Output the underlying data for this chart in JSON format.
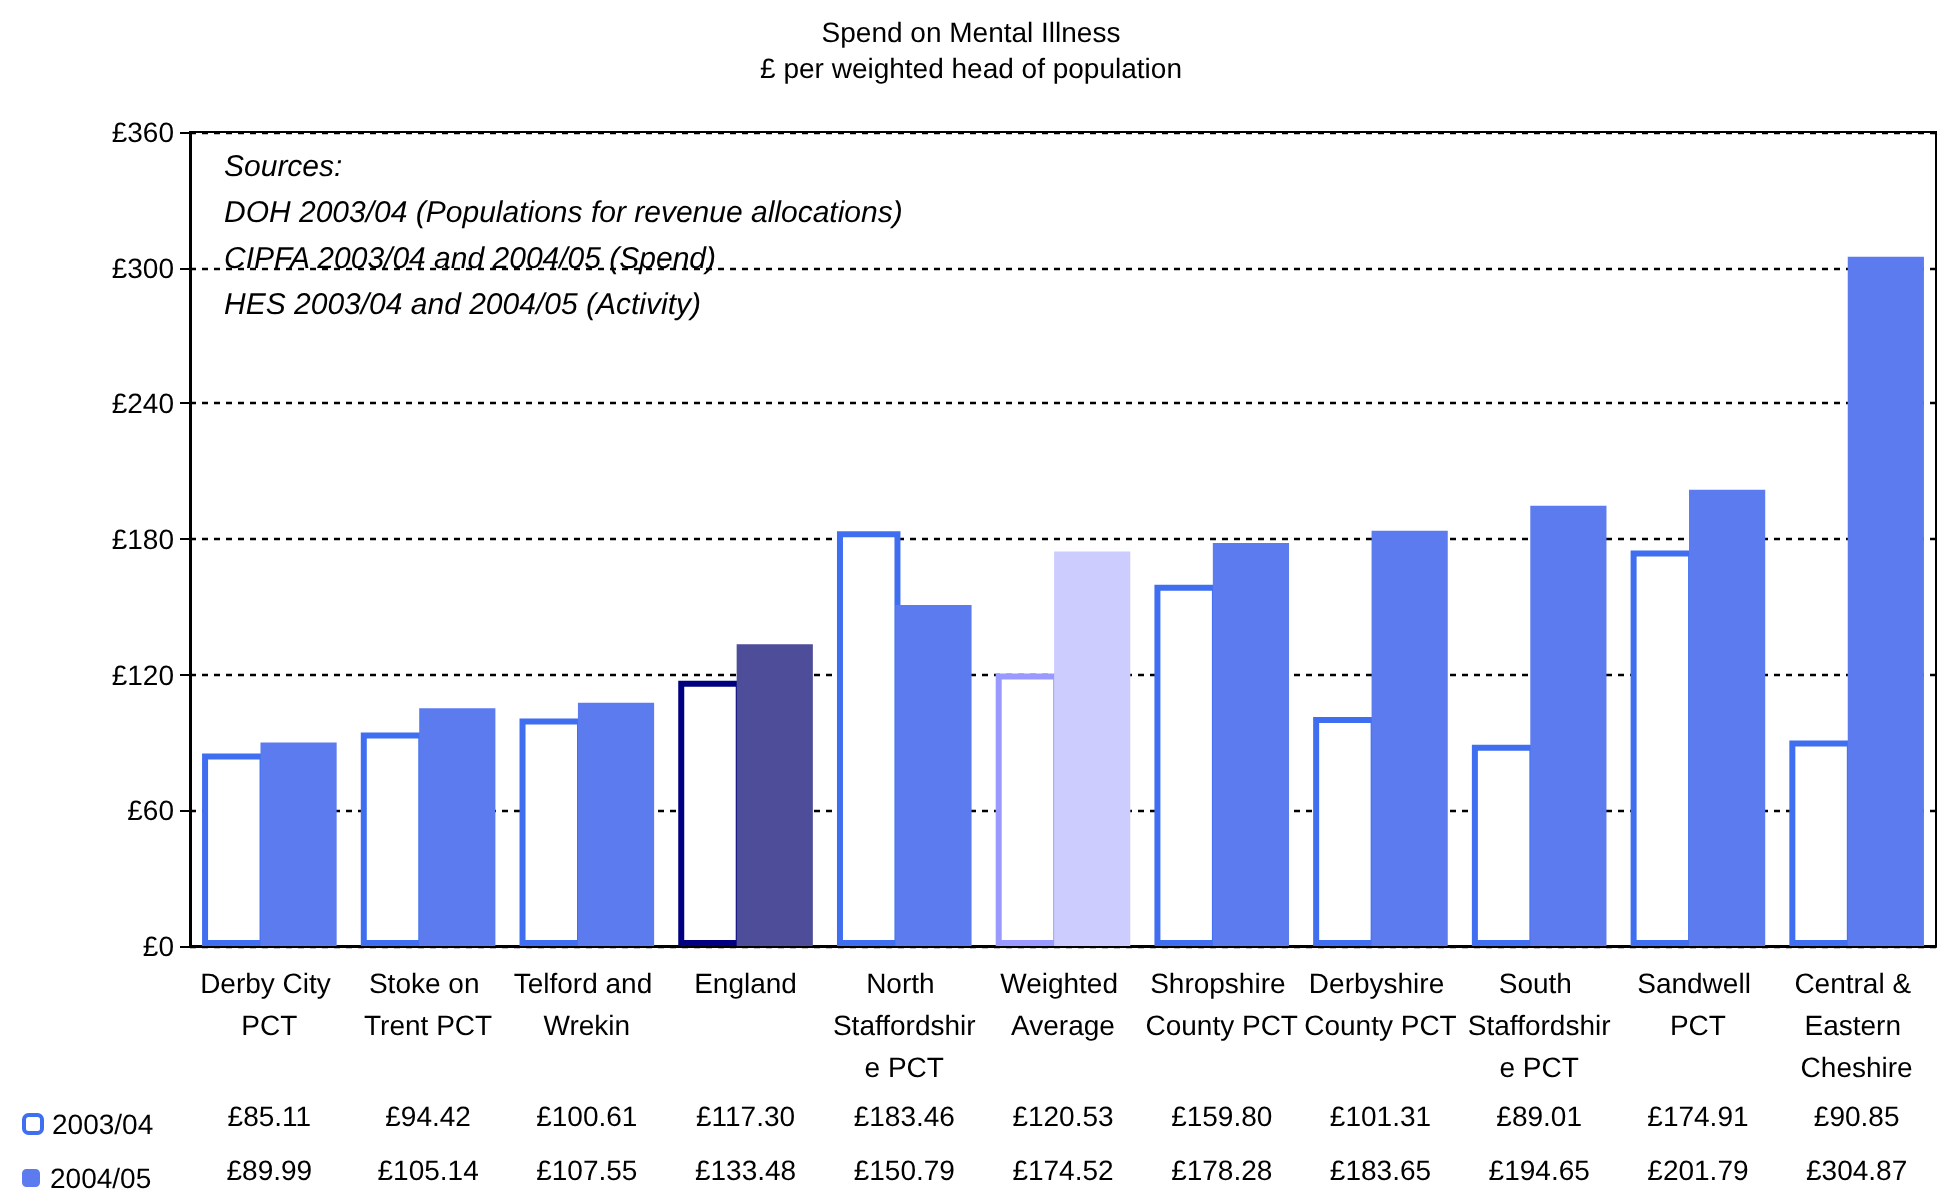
{
  "chart_data": {
    "type": "bar",
    "title": "Spend on Mental Illness",
    "subtitle": "£ per weighted head of population",
    "annotations": [
      "Sources:",
      "DOH 2003/04 (Populations for revenue allocations)",
      "CIPFA 2003/04 and 2004/05 (Spend)",
      "HES 2003/04 and 2004/05 (Activity)"
    ],
    "categories": [
      "Derby City PCT",
      "Stoke on Trent PCT",
      "Telford and Wrekin",
      "England",
      "North Staffordshire PCT",
      "Weighted Average",
      "Shropshire County PCT",
      "Derbyshire County PCT",
      "South Staffordshire PCT",
      "Sandwell PCT",
      "Central & Eastern Cheshire"
    ],
    "series": [
      {
        "name": "2003/04",
        "color": "#3f6ff0",
        "colors": [
          "#3f6ff0",
          "#3f6ff0",
          "#3f6ff0",
          "#000080",
          "#3f6ff0",
          "#9999ff",
          "#3f6ff0",
          "#3f6ff0",
          "#3f6ff0",
          "#3f6ff0",
          "#3f6ff0"
        ],
        "values": [
          85.11,
          94.42,
          100.61,
          117.3,
          183.46,
          120.53,
          159.8,
          101.31,
          89.01,
          174.91,
          90.85
        ],
        "value_labels": [
          "£85.11",
          "£94.42",
          "£100.61",
          "£117.30",
          "£183.46",
          "£120.53",
          "£159.80",
          "£101.31",
          "£89.01",
          "£174.91",
          "£90.85"
        ]
      },
      {
        "name": "2004/05",
        "color": "#5b7bef",
        "colors": [
          "#5b7bef",
          "#5b7bef",
          "#5b7bef",
          "#4d4d99",
          "#5b7bef",
          "#ccccff",
          "#5b7bef",
          "#5b7bef",
          "#5b7bef",
          "#5b7bef",
          "#5b7bef"
        ],
        "values": [
          89.99,
          105.14,
          107.55,
          133.48,
          150.79,
          174.52,
          178.28,
          183.65,
          194.65,
          201.79,
          304.87
        ],
        "value_labels": [
          "£89.99",
          "£105.14",
          "£107.55",
          "£133.48",
          "£150.79",
          "£174.52",
          "£178.28",
          "£183.65",
          "£194.65",
          "£201.79",
          "£304.87"
        ]
      }
    ],
    "ylim": [
      0,
      360
    ],
    "yticks": [
      {
        "value": 0,
        "label": "£0"
      },
      {
        "value": 60,
        "label": "£60"
      },
      {
        "value": 120,
        "label": "£120"
      },
      {
        "value": 180,
        "label": "£180"
      },
      {
        "value": 240,
        "label": "£240"
      },
      {
        "value": 300,
        "label": "£300"
      },
      {
        "value": 360,
        "label": "£360"
      }
    ],
    "grid": "y",
    "legend": "bottom left"
  }
}
